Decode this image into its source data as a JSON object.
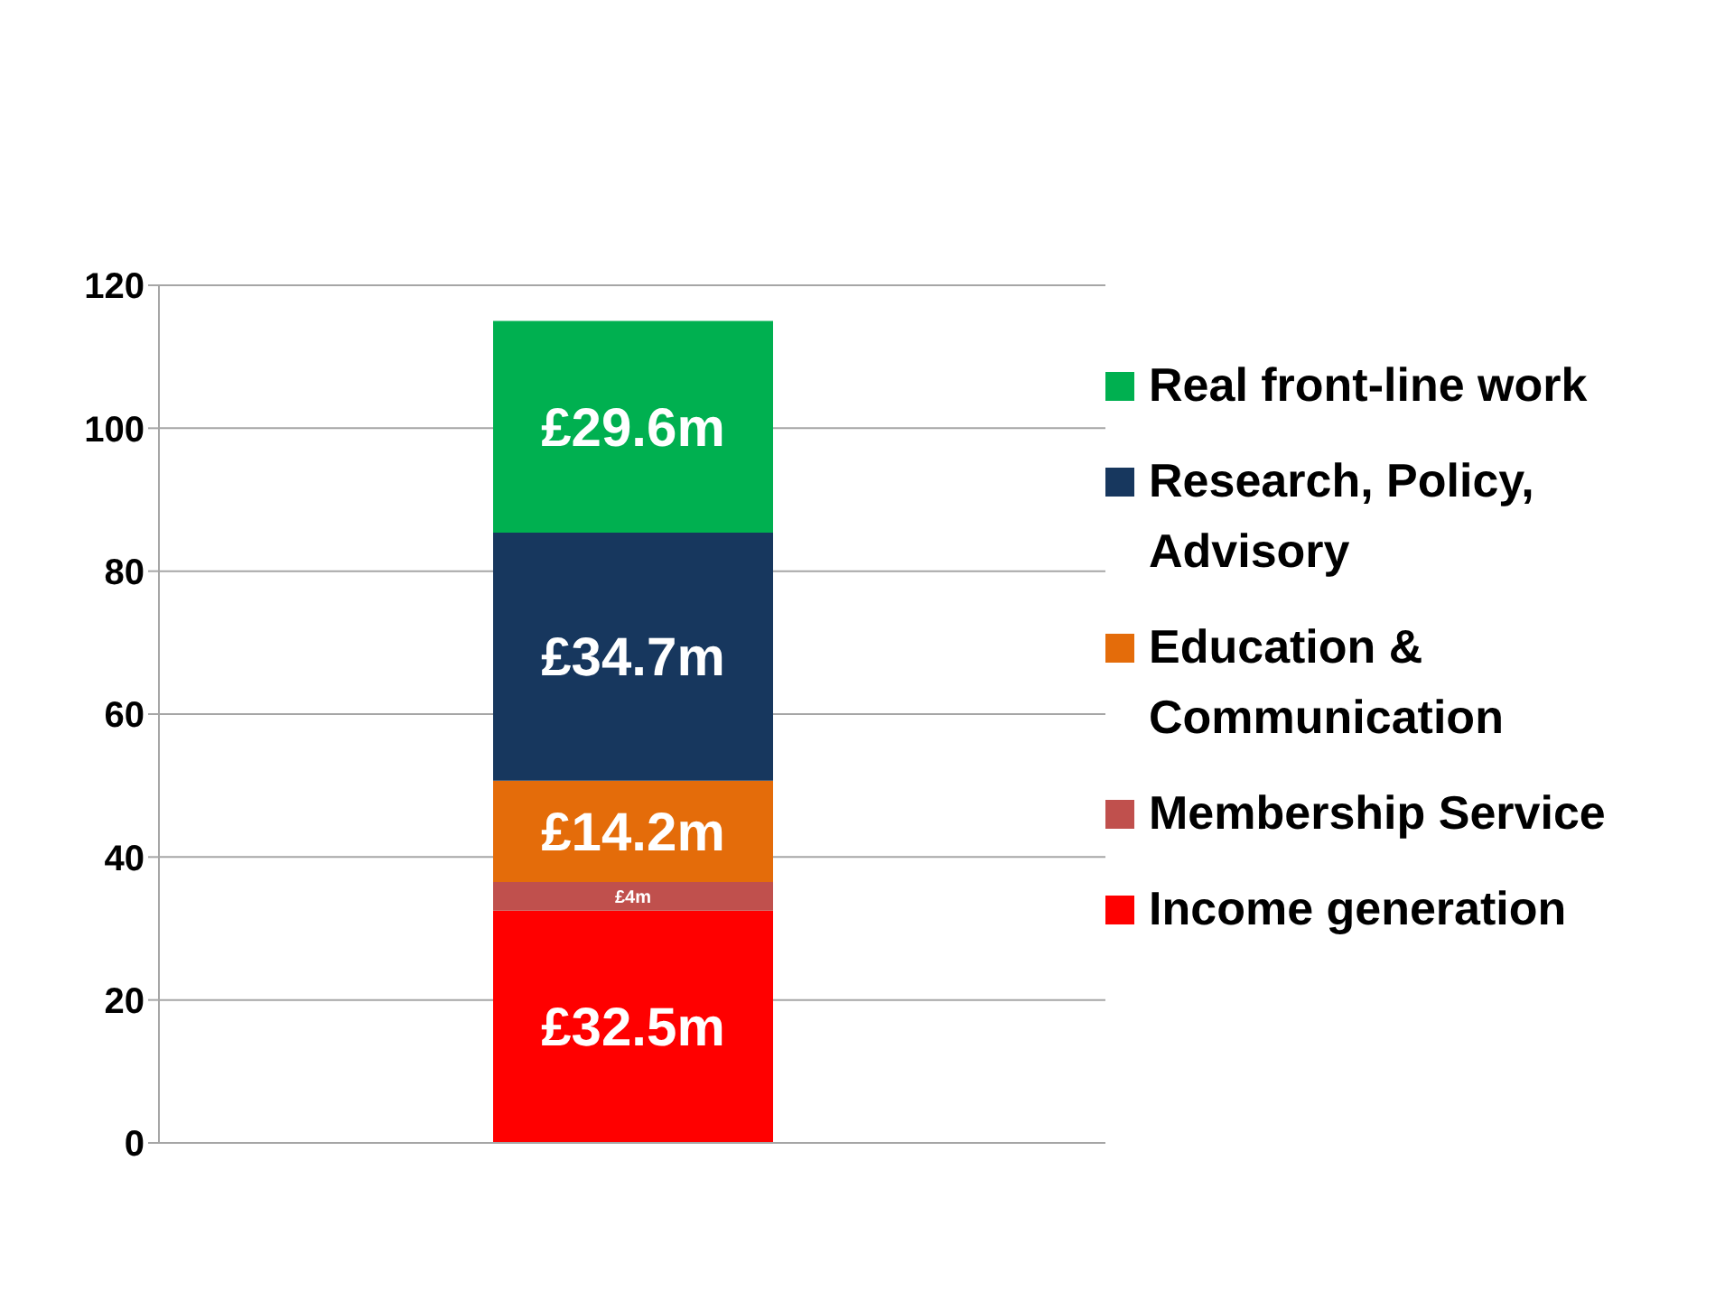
{
  "chart_data": {
    "type": "bar",
    "stacked": true,
    "categories": [
      null
    ],
    "series": [
      {
        "name": "Income generation",
        "color": "#ff0000",
        "values": [
          32.5
        ],
        "value_labels": [
          "£32.5m"
        ]
      },
      {
        "name": "Membership Service",
        "color": "#c0504d",
        "values": [
          4
        ],
        "value_labels": [
          "£4m"
        ]
      },
      {
        "name": "Education & Communication",
        "color": "#e46c0a",
        "values": [
          14.2
        ],
        "value_labels": [
          "£14.2m"
        ]
      },
      {
        "name": "Research, Policy, Advisory",
        "color": "#17375e",
        "values": [
          34.7
        ],
        "value_labels": [
          "£34.7m"
        ]
      },
      {
        "name": "Real front-line work",
        "color": "#00b050",
        "values": [
          29.6
        ],
        "value_labels": [
          "£29.6m"
        ]
      }
    ],
    "ylim": [
      0,
      120
    ],
    "yticks": [
      0,
      20,
      40,
      60,
      80,
      100,
      120
    ],
    "grid": "y",
    "legend": "right"
  }
}
